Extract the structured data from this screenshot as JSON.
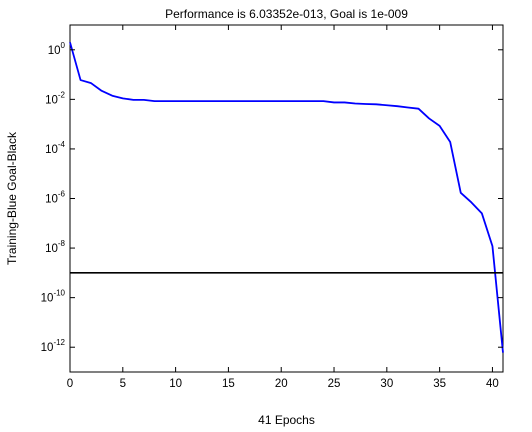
{
  "chart_data": {
    "type": "line",
    "title": "Performance is 6.03352e-013, Goal is 1e-009",
    "xlabel": "41 Epochs",
    "ylabel": "Training-Blue  Goal-Black",
    "x_scale": "linear",
    "y_scale": "log",
    "xlim": [
      0,
      41
    ],
    "ylim": [
      1e-13,
      10
    ],
    "x_ticks": [
      0,
      5,
      10,
      15,
      20,
      25,
      30,
      35,
      40
    ],
    "y_tick_exponents": [
      0,
      -2,
      -4,
      -6,
      -8,
      -10,
      -12
    ],
    "y_tick_base": "10",
    "grid": false,
    "colors": {
      "training": "#0000ff",
      "goal": "#000000",
      "axes": "#000000"
    },
    "series": [
      {
        "key": "training",
        "x": [
          0,
          1,
          2,
          3,
          4,
          5,
          6,
          7,
          8,
          10,
          15,
          20,
          24,
          25,
          26,
          27,
          28,
          29,
          30,
          31,
          32,
          33,
          34,
          35,
          36,
          37,
          38,
          39,
          40,
          41
        ],
        "y": [
          2.0,
          0.06,
          0.045,
          0.022,
          0.014,
          0.011,
          0.0095,
          0.0095,
          0.0085,
          0.0085,
          0.0085,
          0.0085,
          0.0085,
          0.0075,
          0.0075,
          0.0068,
          0.0065,
          0.0063,
          0.0058,
          0.0053,
          0.0047,
          0.0042,
          0.0017,
          0.00085,
          0.00019,
          1.7e-06,
          7e-07,
          2.5e-07,
          1.2e-08,
          6.03352e-13
        ]
      },
      {
        "key": "goal",
        "x": [
          0,
          41
        ],
        "y": [
          1e-09,
          1e-09
        ]
      }
    ]
  }
}
